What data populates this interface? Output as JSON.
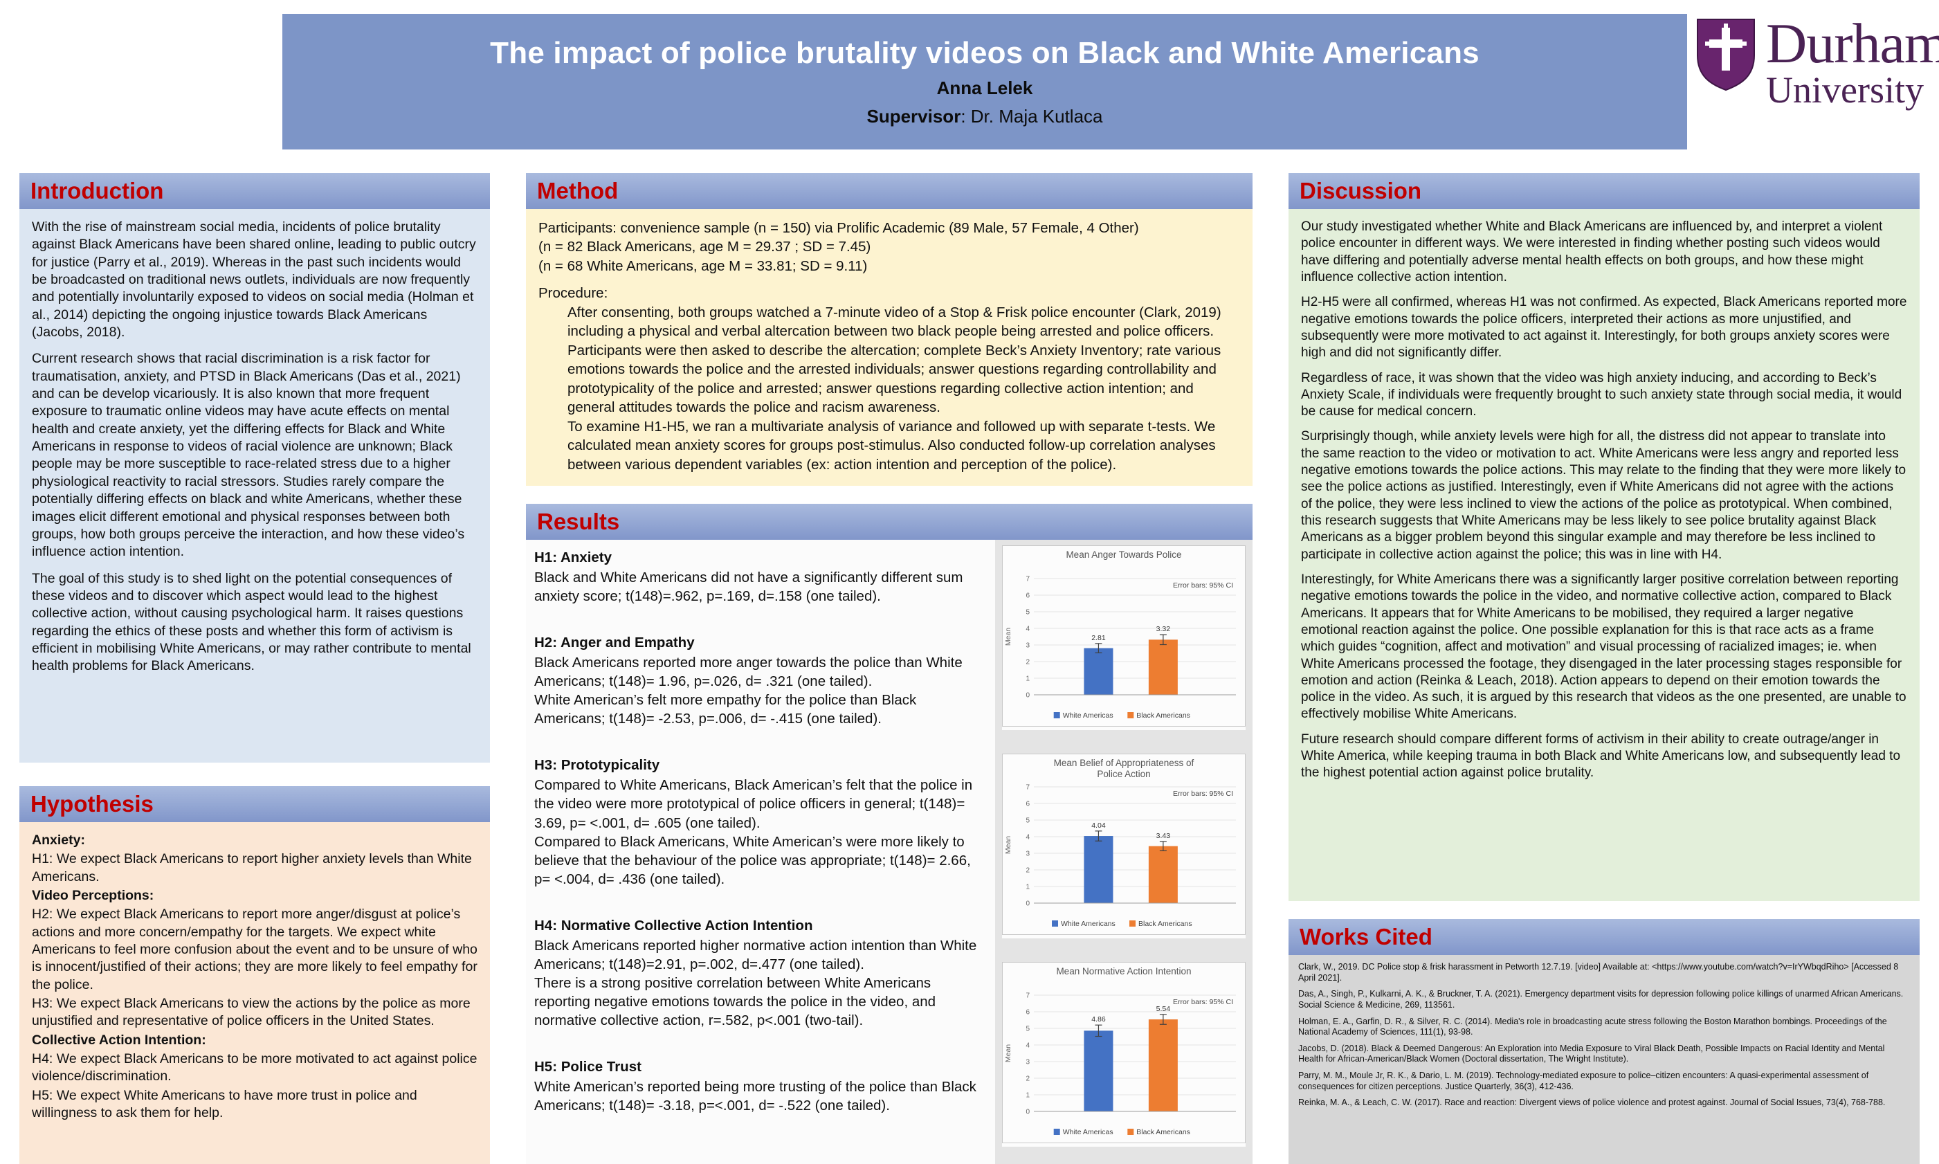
{
  "colors": {
    "banner_blue": "#7d95c7",
    "section_header_blue": "#8ea5d2",
    "heading_red": "#c00000",
    "intro_bg": "#dce6f2",
    "hypothesis_bg": "#fbe7d5",
    "method_bg": "#fdf3d0",
    "discussion_bg": "#e3efda",
    "works_cited_bg": "#d6d6d6",
    "durham_purple": "#68246d",
    "bar_blue": "#4472C4",
    "bar_orange": "#ED7D31"
  },
  "header": {
    "title": "The impact of police brutality videos on Black and White Americans",
    "author": "Anna Lelek",
    "supervisor_label": "Supervisor",
    "supervisor_value": ": Dr. Maja Kutlaca",
    "logo": {
      "line1": "Durham",
      "line2": "University"
    }
  },
  "introduction": {
    "title": "Introduction",
    "paragraphs": [
      "With the rise of mainstream social media, incidents of police brutality against Black Americans have been shared online, leading to public outcry for justice (Parry et al., 2019). Whereas in the past such incidents would be broadcasted on traditional news outlets, individuals are now frequently and potentially involuntarily exposed to videos on social media (Holman et al., 2014) depicting the ongoing injustice towards Black Americans (Jacobs, 2018).",
      "Current research shows that racial discrimination is a risk factor for traumatisation, anxiety, and PTSD in Black Americans (Das et al., 2021) and can be develop vicariously. It is also known that more frequent exposure to traumatic online videos may have acute effects on mental health and create anxiety, yet the differing effects for Black and White Americans in response to videos of racial violence are unknown; Black people may be more susceptible to race-related stress due to a higher physiological reactivity to racial stressors. Studies rarely compare the potentially differing effects on black and white Americans, whether these images elicit different emotional and physical responses between both groups, how both groups perceive the interaction, and how these video’s influence action intention.",
      "The goal of this study is to shed light on the potential consequences of these videos and to discover which aspect would lead to the highest collective action, without causing psychological harm. It raises questions regarding the ethics of these posts and whether this form of activism is efficient in mobilising White Americans, or may rather contribute to mental health problems for Black Americans."
    ]
  },
  "hypothesis": {
    "title": "Hypothesis",
    "items": [
      {
        "text": "Anxiety:",
        "bold": true
      },
      {
        "text": "H1: We expect Black Americans to report higher anxiety levels than White Americans.",
        "bold": false
      },
      {
        "text": "Video Perceptions:",
        "bold": true
      },
      {
        "text": "H2: We expect Black Americans to report more anger/disgust at police’s actions and more concern/empathy for the targets. We expect white Americans to feel more confusion about the event and to be unsure of who is innocent/justified of their actions; they are more likely to feel empathy for the police.",
        "bold": false
      },
      {
        "text": "H3: We expect Black Americans to view the actions by the police as more unjustified and representative of police officers in the United States.",
        "bold": false
      },
      {
        "text": "Collective Action Intention:",
        "bold": true
      },
      {
        "text": "H4: We expect Black Americans to be more motivated to act against police violence/discrimination.",
        "bold": false
      },
      {
        "text": "H5: We expect White Americans to have more trust in police and willingness to ask them for help.",
        "bold": false
      }
    ]
  },
  "method": {
    "title": "Method",
    "participant_lines": [
      "Participants: convenience sample (n = 150) via Prolific Academic (89 Male, 57 Female, 4 Other)",
      "(n = 82 Black Americans, age M = 29.37 ; SD = 7.45)",
      "(n = 68 White Americans, age M = 33.81; SD = 9.11)"
    ],
    "procedure_label": "Procedure:",
    "procedure_paragraphs": [
      "After consenting, both groups watched a 7-minute video of a Stop & Frisk police encounter (Clark, 2019) including a physical and verbal altercation between two black people being arrested and police officers.",
      "Participants were then asked to describe the altercation; complete Beck’s Anxiety Inventory; rate various emotions towards the police and the arrested individuals; answer questions regarding controllability and prototypicality of the police and arrested; answer questions regarding collective action intention; and general attitudes towards the police and racism awareness.",
      "To examine H1-H5, we ran a multivariate analysis of variance and followed up with separate t-tests. We calculated mean anxiety scores for groups post-stimulus. Also conducted follow-up correlation analyses between various dependent variables (ex: action intention and perception of the police)."
    ]
  },
  "results": {
    "title": "Results",
    "blocks": [
      {
        "heading": "H1: Anxiety",
        "lines": [
          "Black and White Americans did not have a significantly different sum anxiety score; t(148)=.962, p=.169, d=.158 (one tailed)."
        ]
      },
      {
        "heading": "H2: Anger and Empathy",
        "lines": [
          "Black Americans reported more anger towards the police than White Americans; t(148)= 1.96, p=.026, d= .321 (one tailed).",
          "White American’s felt more empathy for the police than Black Americans; t(148)= -2.53, p=.006, d= -.415 (one tailed)."
        ]
      },
      {
        "heading": "H3: Prototypicality",
        "lines": [
          "Compared to White Americans, Black American’s felt that the police in the video were more prototypical of police officers in general; t(148)= 3.69, p= <.001, d= .605 (one tailed).",
          "Compared to Black Americans, White American’s were more likely to believe that the behaviour of the police was appropriate; t(148)= 2.66, p= <.004, d= .436 (one tailed)."
        ]
      },
      {
        "heading": "H4: Normative Collective Action Intention",
        "lines": [
          "Black Americans reported higher normative action intention than White Americans; t(148)=2.91, p=.002, d=.477 (one tailed).",
          "There is a strong positive correlation between White Americans reporting negative emotions towards the police in the video, and normative collective action, r=.582, p<.001 (two-tail)."
        ]
      },
      {
        "heading": "H5: Police Trust",
        "lines": [
          "White American’s reported being more trusting of the police than Black Americans; t(148)= -3.18, p=<.001, d= -.522 (one tailed)."
        ]
      }
    ]
  },
  "discussion": {
    "title": "Discussion",
    "paragraphs": [
      "Our study investigated whether White and Black Americans are influenced by, and interpret a violent police encounter in different ways. We were interested in finding whether posting such videos would have differing and potentially adverse mental health effects on both groups, and how these might influence collective action intention.",
      "H2-H5 were all confirmed, whereas H1 was not confirmed. As expected, Black Americans reported more negative emotions towards the police officers, interpreted their actions as more unjustified, and subsequently were more motivated to act against it. Interestingly, for both groups anxiety scores were high and did not significantly differ.",
      "Regardless of race, it was shown that the video was high anxiety inducing, and according to Beck’s Anxiety Scale, if individuals were frequently brought to such anxiety state through social media, it would be cause for medical concern.",
      "Surprisingly though, while anxiety levels were high for all, the distress did not appear to translate into the same reaction to the video or motivation to act. White Americans were less angry and reported less negative emotions towards the police actions. This may relate to the finding that they were more likely to see the police actions as justified. Interestingly, even if White Americans did not agree with the actions of the police, they were less inclined to view the actions of the police as prototypical. When combined, this research suggests that White Americans may be less likely to see police brutality against Black Americans as a bigger problem beyond this singular example and may therefore be less inclined to participate in collective action against the police; this was in line with H4.",
      "Interestingly, for White Americans there was a significantly larger positive correlation between reporting negative emotions towards the police in the video, and normative collective action, compared to Black Americans. It appears that for White Americans to be mobilised, they required a larger negative emotional reaction against the police. One possible explanation for this is that race acts as a frame which guides “cognition, affect and motivation” and visual processing of racialized images; ie. when White Americans processed the footage, they disengaged in the later processing stages responsible for emotion and action (Reinka & Leach, 2018). Action appears to depend on their emotion towards the police in the video. As such, it is argued by this research that videos as the one presented, are unable to effectively mobilise White Americans.",
      "Future research should compare different forms of activism in their ability to create outrage/anger in White America, while keeping trauma in both Black and White Americans low, and subsequently lead to the highest potential action against police brutality."
    ]
  },
  "works_cited": {
    "title": "Works Cited",
    "references": [
      "Clark, W., 2019. DC Police stop & frisk harassment in Petworth 12.7.19. [video] Available at: <https://www.youtube.com/watch?v=IrYWbqdRiho> [Accessed 8 April 2021].",
      "Das, A., Singh, P., Kulkarni, A. K., & Bruckner, T. A. (2021). Emergency department visits for depression following police killings of unarmed African Americans. Social Science & Medicine, 269, 113561.",
      "Holman, E. A., Garfin, D. R., & Silver, R. C. (2014). Media's role in broadcasting acute stress following the Boston Marathon bombings. Proceedings of the National Academy of Sciences, 111(1), 93-98.",
      "Jacobs, D. (2018). Black & Deemed Dangerous: An Exploration into Media Exposure to Viral Black Death, Possible Impacts on Racial Identity and Mental Health for African-American/Black Women (Doctoral dissertation, The Wright Institute).",
      "Parry, M. M., Moule Jr, R. K., & Dario, L. M. (2019). Technology-mediated exposure to police–citizen encounters: A quasi-experimental assessment of consequences for citizen perceptions. Justice Quarterly, 36(3), 412-436.",
      "Reinka, M. A., & Leach, C. W. (2017). Race and reaction: Divergent views of police violence and protest against. Journal of Social Issues, 73(4), 768-788."
    ]
  },
  "chart_data": [
    {
      "type": "bar",
      "title": "Mean Anger Towards Police",
      "title_lines": [
        "Mean Anger Towards Police"
      ],
      "note": "Error bars: 95% CI",
      "ylabel": "Mean",
      "ylim": [
        0,
        7
      ],
      "grid": true,
      "legend_position": "bottom",
      "categories": [
        "White Americas",
        "Black Americans"
      ],
      "values": [
        2.81,
        3.32
      ],
      "ci": [
        0.28,
        0.3
      ],
      "colors": [
        "#4472C4",
        "#ED7D31"
      ]
    },
    {
      "type": "bar",
      "title": "Mean Belief of Appropriateness of Police Action",
      "title_lines": [
        "Mean Belief of Appropriateness of",
        "Police Action"
      ],
      "note": "Error bars: 95% CI",
      "ylabel": "Mean",
      "ylim": [
        0,
        7
      ],
      "grid": true,
      "legend_position": "bottom",
      "categories": [
        "White Americans",
        "Black Americans"
      ],
      "values": [
        4.04,
        3.43
      ],
      "ci": [
        0.3,
        0.28
      ],
      "colors": [
        "#4472C4",
        "#ED7D31"
      ]
    },
    {
      "type": "bar",
      "title": "Mean Normative Action Intention",
      "title_lines": [
        "Mean Normative Action Intention"
      ],
      "note": "Error bars: 95% CI",
      "ylabel": "Mean",
      "ylim": [
        0,
        7
      ],
      "grid": true,
      "legend_position": "bottom",
      "categories": [
        "White Americas",
        "Black Americans"
      ],
      "values": [
        4.86,
        5.54
      ],
      "ci": [
        0.34,
        0.3
      ],
      "colors": [
        "#4472C4",
        "#ED7D31"
      ]
    }
  ]
}
